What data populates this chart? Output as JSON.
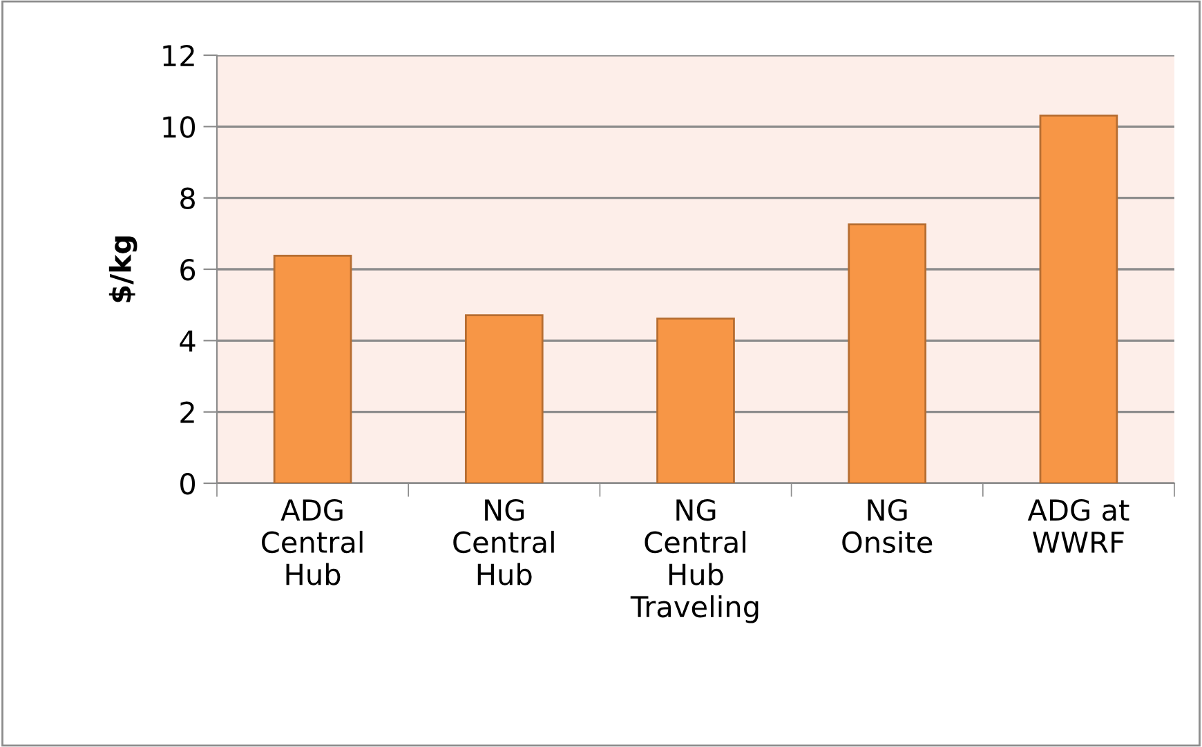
{
  "chart_data": {
    "type": "bar",
    "ylabel": "$/kg",
    "categories": [
      "ADG Central Hub",
      "NG Central Hub",
      "NG Central Hub Traveling",
      "NG Onsite",
      "ADG at WWRF"
    ],
    "values": [
      6.38,
      4.71,
      4.62,
      7.26,
      10.31
    ],
    "color": "#f79646",
    "ylim": [
      0,
      12
    ],
    "yticks": [
      0,
      2,
      4,
      6,
      8,
      10,
      12
    ],
    "grid": "y"
  }
}
